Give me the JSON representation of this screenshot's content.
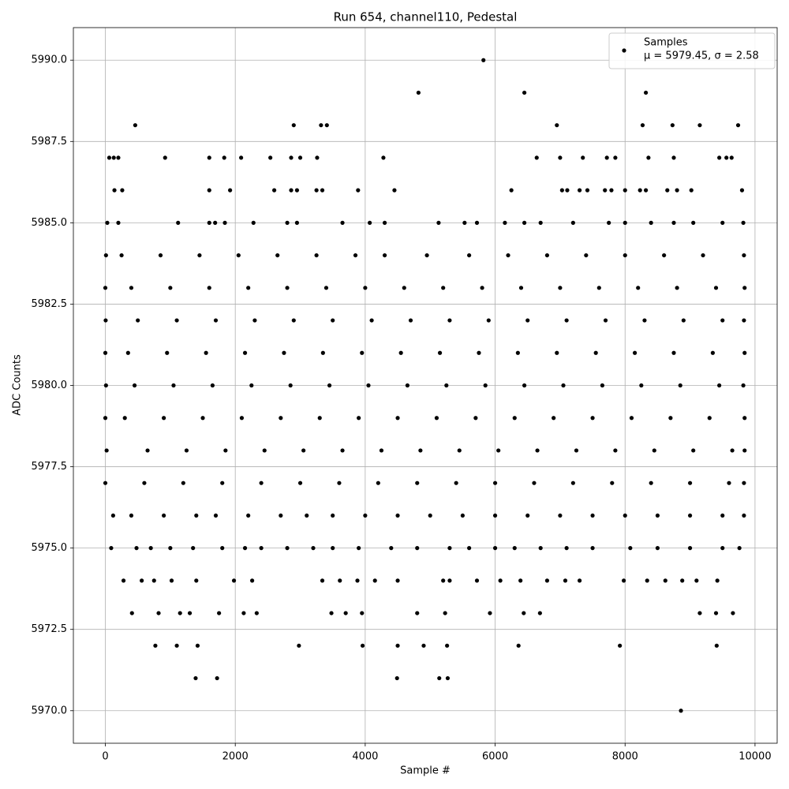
{
  "chart_data": {
    "type": "scatter",
    "title": "Run 654, channel110, Pedestal",
    "xlabel": "Sample #",
    "ylabel": "ADC Counts",
    "xlim": [
      -492,
      10341
    ],
    "ylim": [
      5969,
      5991
    ],
    "xticks": [
      0,
      2000,
      4000,
      6000,
      8000,
      10000
    ],
    "yticks": [
      {
        "value": 5970,
        "label": "5970.0"
      },
      5972.5,
      {
        "value": 5975,
        "label": "5975.0"
      },
      5977.5,
      {
        "value": 5980,
        "label": "5980.0"
      },
      5982.5,
      {
        "value": 5985,
        "label": "5985.0"
      },
      5987.5,
      {
        "value": 5990,
        "label": "5990.0"
      }
    ],
    "grid": true,
    "legend": "upper right",
    "legend_note": "μ = 5979.45, σ = 2.58",
    "x": [
      8860,
      1390,
      1720,
      4490,
      5140,
      5270,
      770,
      1100,
      1420,
      2980,
      3960,
      4500,
      4900,
      5260,
      6360,
      7920,
      9410,
      410,
      820,
      1150,
      1300,
      1750,
      2130,
      2330,
      3480,
      3700,
      3950,
      4800,
      5230,
      5920,
      6440,
      6690,
      9150,
      9400,
      9660,
      280,
      560,
      750,
      1020,
      1400,
      1980,
      2260,
      3340,
      3610,
      3880,
      4150,
      4500,
      5200,
      5300,
      5720,
      6080,
      6390,
      6800,
      7080,
      7300,
      7980,
      8340,
      8620,
      8880,
      9100,
      9420,
      90,
      480,
      700,
      1000,
      1350,
      1800,
      2150,
      2400,
      2800,
      3200,
      3500,
      3900,
      4400,
      4800,
      5300,
      5600,
      6000,
      6300,
      6700,
      7100,
      7500,
      8080,
      8500,
      9000,
      9500,
      9760,
      120,
      400,
      900,
      1400,
      1700,
      2200,
      2700,
      3100,
      3500,
      4000,
      4500,
      5000,
      5500,
      6000,
      6500,
      7000,
      7500,
      8000,
      8500,
      9000,
      9500,
      9830,
      0,
      600,
      1200,
      1800,
      2400,
      3000,
      3600,
      4200,
      4800,
      5400,
      6000,
      6600,
      7200,
      7800,
      8400,
      9000,
      9600,
      9830,
      20,
      650,
      1250,
      1850,
      2450,
      3050,
      3650,
      4250,
      4850,
      5450,
      6050,
      6650,
      7250,
      7850,
      8450,
      9050,
      9650,
      9840,
      0,
      300,
      900,
      1500,
      2100,
      2700,
      3300,
      3900,
      4500,
      5100,
      5700,
      6300,
      6900,
      7500,
      8100,
      8700,
      9300,
      9840,
      10,
      450,
      1050,
      1650,
      2250,
      2850,
      3450,
      4050,
      4650,
      5250,
      5850,
      6450,
      7050,
      7650,
      8250,
      8850,
      9450,
      9820,
      0,
      350,
      950,
      1550,
      2150,
      2750,
      3350,
      3950,
      4550,
      5150,
      5750,
      6350,
      6950,
      7550,
      8150,
      8750,
      9350,
      9840,
      5,
      500,
      1100,
      1700,
      2300,
      2900,
      3500,
      4100,
      4700,
      5300,
      5900,
      6500,
      7100,
      7700,
      8300,
      8900,
      9500,
      9830,
      0,
      400,
      1000,
      1600,
      2200,
      2800,
      3400,
      4000,
      4600,
      5200,
      5800,
      6400,
      7000,
      7600,
      8200,
      8800,
      9400,
      9840,
      10,
      250,
      850,
      1450,
      2050,
      2650,
      3250,
      3850,
      4300,
      4950,
      5600,
      6200,
      6800,
      7400,
      8000,
      8600,
      9200,
      9830,
      30,
      200,
      1120,
      1600,
      1690,
      1840,
      2280,
      2800,
      2950,
      3650,
      4070,
      4300,
      5130,
      5530,
      5720,
      6150,
      6450,
      6700,
      7200,
      7750,
      8000,
      8400,
      8750,
      9050,
      9500,
      9820,
      140,
      260,
      1600,
      1920,
      2600,
      2860,
      2950,
      3250,
      3340,
      3890,
      4450,
      6250,
      7030,
      7110,
      7300,
      7420,
      7690,
      7790,
      8000,
      8230,
      8320,
      8650,
      8800,
      9020,
      9800,
      60,
      130,
      200,
      920,
      1600,
      1830,
      2090,
      2540,
      2860,
      3000,
      3260,
      4280,
      6640,
      7000,
      7350,
      7720,
      7850,
      8360,
      8750,
      9450,
      9560,
      9640,
      460,
      2900,
      3320,
      3410,
      6950,
      8270,
      8730,
      9150,
      9740,
      4820,
      6450,
      8320,
      5820
    ],
    "series": [
      {
        "name": "Samples",
        "color": "#000000",
        "values": [
          5970,
          5971,
          5971,
          5971,
          5971,
          5971,
          5972,
          5972,
          5972,
          5972,
          5972,
          5972,
          5972,
          5972,
          5972,
          5972,
          5972,
          5973,
          5973,
          5973,
          5973,
          5973,
          5973,
          5973,
          5973,
          5973,
          5973,
          5973,
          5973,
          5973,
          5973,
          5973,
          5973,
          5973,
          5973,
          5974,
          5974,
          5974,
          5974,
          5974,
          5974,
          5974,
          5974,
          5974,
          5974,
          5974,
          5974,
          5974,
          5974,
          5974,
          5974,
          5974,
          5974,
          5974,
          5974,
          5974,
          5974,
          5974,
          5974,
          5974,
          5974,
          5975,
          5975,
          5975,
          5975,
          5975,
          5975,
          5975,
          5975,
          5975,
          5975,
          5975,
          5975,
          5975,
          5975,
          5975,
          5975,
          5975,
          5975,
          5975,
          5975,
          5975,
          5975,
          5975,
          5975,
          5975,
          5975,
          5976,
          5976,
          5976,
          5976,
          5976,
          5976,
          5976,
          5976,
          5976,
          5976,
          5976,
          5976,
          5976,
          5976,
          5976,
          5976,
          5976,
          5976,
          5976,
          5976,
          5976,
          5976,
          5977,
          5977,
          5977,
          5977,
          5977,
          5977,
          5977,
          5977,
          5977,
          5977,
          5977,
          5977,
          5977,
          5977,
          5977,
          5977,
          5977,
          5977,
          5978,
          5978,
          5978,
          5978,
          5978,
          5978,
          5978,
          5978,
          5978,
          5978,
          5978,
          5978,
          5978,
          5978,
          5978,
          5978,
          5978,
          5978,
          5979,
          5979,
          5979,
          5979,
          5979,
          5979,
          5979,
          5979,
          5979,
          5979,
          5979,
          5979,
          5979,
          5979,
          5979,
          5979,
          5979,
          5979,
          5980,
          5980,
          5980,
          5980,
          5980,
          5980,
          5980,
          5980,
          5980,
          5980,
          5980,
          5980,
          5980,
          5980,
          5980,
          5980,
          5980,
          5980,
          5981,
          5981,
          5981,
          5981,
          5981,
          5981,
          5981,
          5981,
          5981,
          5981,
          5981,
          5981,
          5981,
          5981,
          5981,
          5981,
          5981,
          5981,
          5982,
          5982,
          5982,
          5982,
          5982,
          5982,
          5982,
          5982,
          5982,
          5982,
          5982,
          5982,
          5982,
          5982,
          5982,
          5982,
          5982,
          5982,
          5983,
          5983,
          5983,
          5983,
          5983,
          5983,
          5983,
          5983,
          5983,
          5983,
          5983,
          5983,
          5983,
          5983,
          5983,
          5983,
          5983,
          5983,
          5984,
          5984,
          5984,
          5984,
          5984,
          5984,
          5984,
          5984,
          5984,
          5984,
          5984,
          5984,
          5984,
          5984,
          5984,
          5984,
          5984,
          5984,
          5985,
          5985,
          5985,
          5985,
          5985,
          5985,
          5985,
          5985,
          5985,
          5985,
          5985,
          5985,
          5985,
          5985,
          5985,
          5985,
          5985,
          5985,
          5985,
          5985,
          5985,
          5985,
          5985,
          5985,
          5985,
          5985,
          5986,
          5986,
          5986,
          5986,
          5986,
          5986,
          5986,
          5986,
          5986,
          5986,
          5986,
          5986,
          5986,
          5986,
          5986,
          5986,
          5986,
          5986,
          5986,
          5986,
          5986,
          5986,
          5986,
          5986,
          5986,
          5987,
          5987,
          5987,
          5987,
          5987,
          5987,
          5987,
          5987,
          5987,
          5987,
          5987,
          5987,
          5987,
          5987,
          5987,
          5987,
          5987,
          5987,
          5987,
          5987,
          5987,
          5987,
          5988,
          5988,
          5988,
          5988,
          5988,
          5988,
          5988,
          5988,
          5988,
          5989,
          5989,
          5989,
          5990
        ]
      }
    ]
  }
}
